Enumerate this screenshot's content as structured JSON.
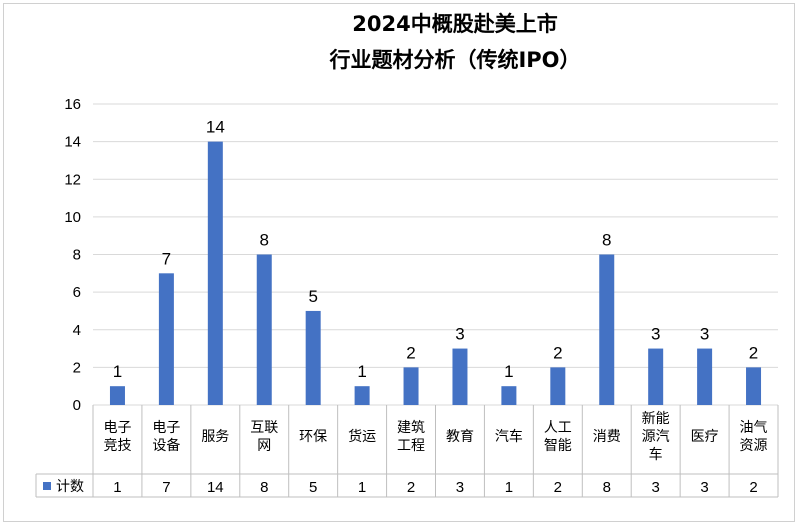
{
  "colors": {
    "bar": "#4472C4",
    "grid": "#d9d9d9",
    "table_border": "#bfbfbf"
  },
  "chart_data": {
    "type": "bar",
    "title_lines": [
      "2024中概股赴美上市",
      "行业题材分析（传统IPO）"
    ],
    "categories": [
      "电子竞技",
      "电子设备",
      "服务",
      "互联网",
      "环保",
      "货运",
      "建筑工程",
      "教育",
      "汽车",
      "人工智能",
      "消费",
      "新能源汽车",
      "医疗",
      "油气资源"
    ],
    "category_lines": [
      [
        "电子",
        "竞技"
      ],
      [
        "电子",
        "设备"
      ],
      [
        "服务"
      ],
      [
        "互联",
        "网"
      ],
      [
        "环保"
      ],
      [
        "货运"
      ],
      [
        "建筑",
        "工程"
      ],
      [
        "教育"
      ],
      [
        "汽车"
      ],
      [
        "人工",
        "智能"
      ],
      [
        "消费"
      ],
      [
        "新能",
        "源汽",
        "车"
      ],
      [
        "医疗"
      ],
      [
        "油气",
        "资源"
      ]
    ],
    "series": [
      {
        "name": "计数",
        "values": [
          1,
          7,
          14,
          8,
          5,
          1,
          2,
          3,
          1,
          2,
          8,
          3,
          3,
          2
        ]
      }
    ],
    "ylim": [
      0,
      16
    ],
    "yticks": [
      "0",
      "2",
      "4",
      "6",
      "8",
      "10",
      "12",
      "14",
      "16"
    ],
    "xlabel": "",
    "ylabel": "",
    "grid": true,
    "legend": "data-table"
  }
}
